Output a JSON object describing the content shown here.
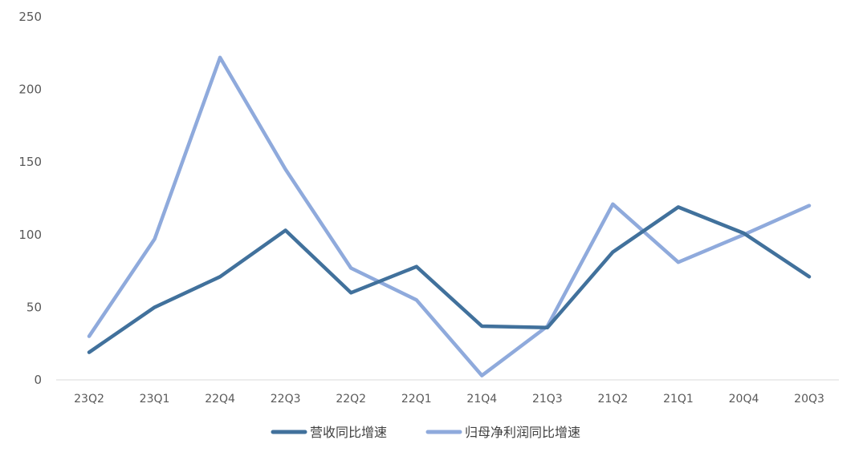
{
  "chart_data": {
    "type": "line",
    "title": "",
    "xlabel": "",
    "ylabel": "",
    "categories": [
      "23Q2",
      "23Q1",
      "22Q4",
      "22Q3",
      "22Q2",
      "22Q1",
      "21Q4",
      "21Q3",
      "21Q2",
      "21Q1",
      "20Q4",
      "20Q3"
    ],
    "y_ticks": [
      "0",
      "50",
      "100",
      "150",
      "200",
      "250"
    ],
    "ylim": [
      0,
      250
    ],
    "grid": false,
    "legend_position": "bottom",
    "series": [
      {
        "name": "营收同比增速",
        "color": "#41719c",
        "values": [
          19,
          50,
          71,
          103,
          60,
          78,
          37,
          36,
          88,
          119,
          101,
          71
        ]
      },
      {
        "name": "归母净利润同比增速",
        "color": "#8faadc",
        "values": [
          30,
          97,
          222,
          145,
          77,
          55,
          3,
          37,
          121,
          81,
          100,
          120
        ]
      }
    ]
  }
}
